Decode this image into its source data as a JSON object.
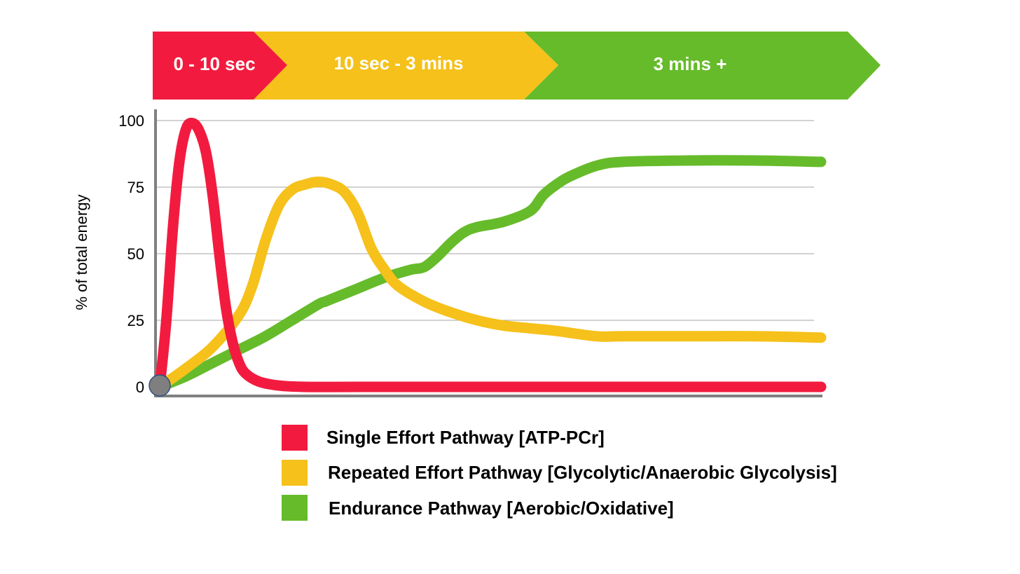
{
  "phases": [
    {
      "label": "0 - 10 sec",
      "color": "#f21b3f"
    },
    {
      "label": "10 sec - 3 mins",
      "color": "#f5c11a"
    },
    {
      "label": "3 mins +",
      "color": "#66bb2a"
    }
  ],
  "chart_data": {
    "type": "line",
    "title": "",
    "xlabel": "",
    "ylabel": "% of total energy",
    "ylim": [
      0,
      100
    ],
    "yticks": [
      "100",
      "75",
      "50",
      "25",
      "0"
    ],
    "ytick_values": [
      100,
      75,
      50,
      25,
      0
    ],
    "grid": true,
    "legend_position": "bottom",
    "series": [
      {
        "name": "Single Effort Pathway [ATP-PCr]",
        "color": "#f21b3f",
        "x": [
          0,
          1,
          2,
          3,
          4,
          5,
          6,
          7,
          8,
          9,
          10,
          11,
          12,
          13,
          15,
          18,
          22,
          30,
          45,
          60,
          80,
          100
        ],
        "y": [
          0,
          25,
          60,
          85,
          97,
          99,
          96,
          88,
          72,
          50,
          30,
          17,
          9,
          5,
          2,
          0.5,
          0,
          0,
          0,
          0,
          0,
          0
        ]
      },
      {
        "name": "Repeated Effort Pathway [Glycolytic/Anaerobic Glycolysis]",
        "color": "#f5c11a",
        "x": [
          0,
          4,
          8,
          12,
          14,
          16,
          18,
          20,
          22,
          24,
          26,
          28,
          30,
          32,
          34,
          36,
          40,
          44,
          48,
          52,
          56,
          60,
          66,
          70,
          80,
          90,
          100
        ],
        "y": [
          0,
          7,
          15,
          27,
          38,
          55,
          68,
          74,
          76,
          77,
          76,
          73,
          65,
          52,
          44,
          38,
          32,
          28,
          25,
          23,
          22,
          21,
          19,
          19,
          19,
          19,
          18.5
        ]
      },
      {
        "name": "Endurance Pathway [Aerobic/Oxidative]",
        "color": "#66bb2a",
        "x": [
          0,
          4,
          8,
          12,
          16,
          20,
          24,
          25,
          26,
          30,
          34,
          38,
          40,
          42,
          44,
          46,
          48,
          52,
          56,
          58,
          60,
          62,
          66,
          70,
          80,
          90,
          100
        ],
        "y": [
          0,
          4,
          9,
          14,
          19,
          25,
          31,
          32,
          33,
          37,
          41,
          44,
          45,
          49,
          54,
          58,
          60,
          62,
          66,
          72,
          76,
          79,
          83,
          84.5,
          85,
          85,
          84.5
        ]
      }
    ]
  }
}
